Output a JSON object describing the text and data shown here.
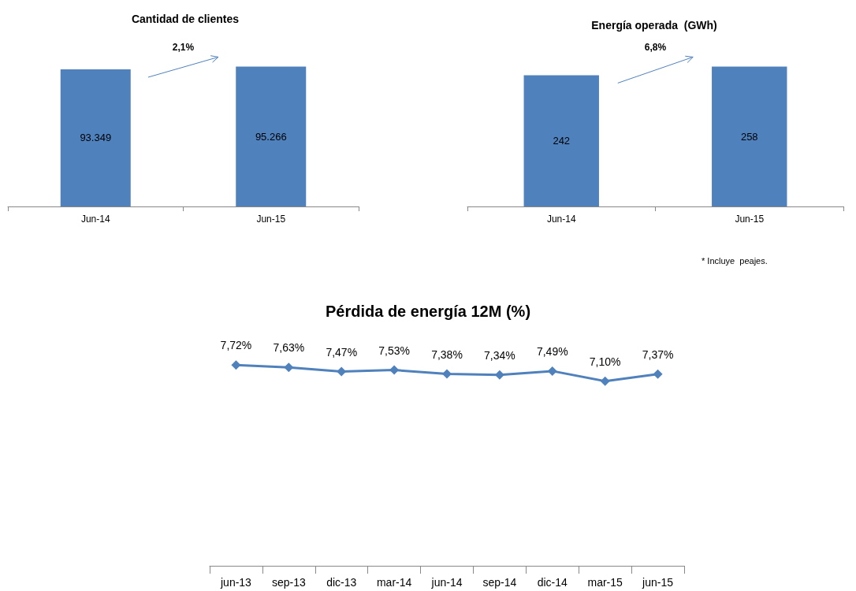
{
  "chart_data": [
    {
      "type": "bar",
      "title": "Cantidad de clientes",
      "categories": [
        "Jun-14",
        "Jun-15"
      ],
      "values": [
        93349,
        95266
      ],
      "value_labels": [
        "93.349",
        "95.266"
      ],
      "color": "#4f81bd",
      "annotations": [
        "2,1%"
      ]
    },
    {
      "type": "bar",
      "title": "Energía operada  (GWh)",
      "categories": [
        "Jun-14",
        "Jun-15"
      ],
      "values": [
        242,
        258
      ],
      "value_labels": [
        "242",
        "258"
      ],
      "color": "#4f81bd",
      "annotations": [
        "6,8%",
        "* Incluye  peajes."
      ]
    },
    {
      "type": "line",
      "title": "Pérdida de energía 12M (%)",
      "categories": [
        "jun-13",
        "sep-13",
        "dic-13",
        "mar-14",
        "jun-14",
        "sep-14",
        "dic-14",
        "mar-15",
        "jun-15"
      ],
      "values": [
        7.72,
        7.63,
        7.47,
        7.53,
        7.38,
        7.34,
        7.49,
        7.1,
        7.37
      ],
      "value_labels": [
        "7,72%",
        "7,63%",
        "7,47%",
        "7,53%",
        "7,38%",
        "7,34%",
        "7,49%",
        "7,10%",
        "7,37%"
      ],
      "color": "#4f81bd",
      "marker": "diamond"
    }
  ]
}
